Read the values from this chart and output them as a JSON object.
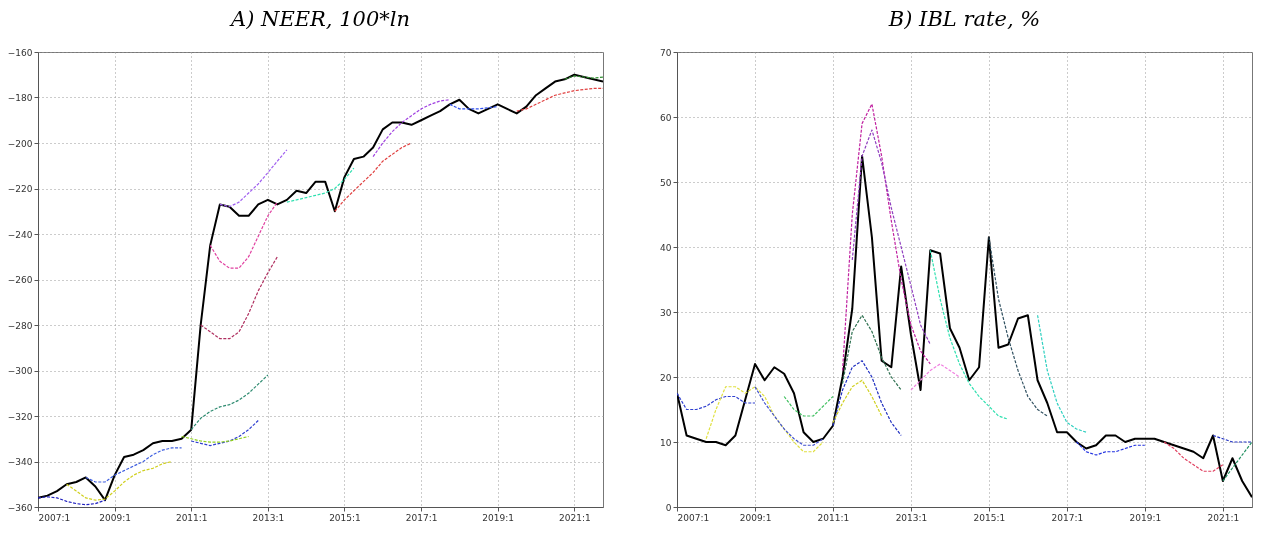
{
  "chart_data": [
    {
      "type": "line",
      "title": "A) NEER, 100*ln",
      "xlim": [
        "2007-01",
        "2021-10"
      ],
      "ylim": [
        -360,
        -160
      ],
      "grid": true,
      "line_style": "dashed",
      "xticks": [
        {
          "value": "2007-01",
          "label": "2007:1"
        },
        {
          "value": "2009-01",
          "label": "2009:1"
        },
        {
          "value": "2011-01",
          "label": "2011:1"
        },
        {
          "value": "2013-01",
          "label": "2013:1"
        },
        {
          "value": "2015-01",
          "label": "2015:1"
        },
        {
          "value": "2017-01",
          "label": "2017:1"
        },
        {
          "value": "2019-01",
          "label": "2019:1"
        },
        {
          "value": "2021-01",
          "label": "2021:1"
        }
      ],
      "yticks": [
        -360,
        -340,
        -320,
        -300,
        -280,
        -260,
        -240,
        -220,
        -200,
        -180,
        -160
      ],
      "series": [
        {
          "color": "#e040a0",
          "x": [
            "2011-07",
            "2011-10",
            "2012-01",
            "2012-04",
            "2012-07",
            "2012-10",
            "2013-01",
            "2013-04"
          ],
          "values": [
            -245,
            -252,
            -255,
            -255,
            -250,
            -241,
            -232,
            -226
          ]
        },
        {
          "color": "#b03060",
          "x": [
            "2011-04",
            "2011-07",
            "2011-10",
            "2012-01",
            "2012-04",
            "2012-07",
            "2012-10",
            "2013-01",
            "2013-04"
          ],
          "values": [
            -280,
            -283,
            -286,
            -286,
            -283,
            -275,
            -265,
            -257,
            -250
          ]
        },
        {
          "color": "#2e8b70",
          "x": [
            "2011-01",
            "2011-04",
            "2011-07",
            "2011-10",
            "2012-01",
            "2012-04",
            "2012-07",
            "2012-10",
            "2013-01"
          ],
          "values": [
            -326,
            -321,
            -318,
            -316,
            -315,
            -313,
            -310,
            -306,
            -302
          ]
        },
        {
          "color": "#3040d0",
          "x": [
            "2011-01",
            "2011-04",
            "2011-07",
            "2011-10",
            "2012-01",
            "2012-04",
            "2012-07",
            "2012-10"
          ],
          "values": [
            -331,
            -332,
            -333,
            -332,
            -331,
            -329,
            -326,
            -322
          ]
        },
        {
          "color": "#a060f0",
          "x": [
            "2011-10",
            "2012-01",
            "2012-04",
            "2012-07",
            "2012-10",
            "2013-01",
            "2013-04",
            "2013-07"
          ],
          "values": [
            -227,
            -228,
            -226,
            -222,
            -218,
            -213,
            -208,
            -203
          ]
        },
        {
          "color": "#2020c0",
          "x": [
            "2007-01",
            "2007-04",
            "2007-07",
            "2007-10",
            "2008-01",
            "2008-04",
            "2008-07",
            "2008-10"
          ],
          "values": [
            -356,
            -355.5,
            -356,
            -357.5,
            -358.5,
            -359,
            -358.5,
            -357
          ]
        },
        {
          "color": "#d0d020",
          "x": [
            "2007-10",
            "2008-01",
            "2008-04",
            "2008-07",
            "2008-10",
            "2009-01",
            "2009-04",
            "2009-07",
            "2009-10",
            "2010-01",
            "2010-04",
            "2010-07"
          ],
          "values": [
            -350,
            -353,
            -356,
            -357,
            -356.5,
            -353,
            -349,
            -346,
            -344,
            -343,
            -341,
            -340
          ]
        },
        {
          "color": "#4060e0",
          "x": [
            "2008-04",
            "2008-07",
            "2008-10",
            "2009-01",
            "2009-04",
            "2009-07",
            "2009-10",
            "2010-01",
            "2010-04",
            "2010-07",
            "2010-10"
          ],
          "values": [
            -347,
            -349,
            -349,
            -346,
            -344,
            -342,
            -340,
            -337,
            -335,
            -334,
            -334
          ]
        },
        {
          "color": "#90d020",
          "x": [
            "2010-10",
            "2011-01",
            "2011-04",
            "2011-07",
            "2011-10",
            "2012-01",
            "2012-04",
            "2012-07"
          ],
          "values": [
            -329,
            -330,
            -331,
            -331.5,
            -331.5,
            -331,
            -330,
            -329
          ]
        },
        {
          "color": "#e04040",
          "x": [
            "2014-10",
            "2015-01",
            "2015-04",
            "2015-07",
            "2015-10",
            "2016-01",
            "2016-04",
            "2016-07",
            "2016-10"
          ],
          "values": [
            -230,
            -225,
            -221,
            -217,
            -213,
            -208,
            -205,
            -202,
            -200
          ]
        },
        {
          "color": "#30e0b0",
          "x": [
            "2013-07",
            "2013-10",
            "2014-01",
            "2014-04",
            "2014-07",
            "2014-10",
            "2015-01",
            "2015-04"
          ],
          "values": [
            -226,
            -225,
            -224,
            -223,
            -222,
            -220,
            -216,
            -211
          ]
        },
        {
          "color": "#a040e0",
          "x": [
            "2015-10",
            "2016-01",
            "2016-04",
            "2016-07",
            "2016-10",
            "2017-01",
            "2017-04",
            "2017-07",
            "2017-10"
          ],
          "values": [
            -206,
            -200,
            -195,
            -191,
            -188,
            -185,
            -183,
            -181.5,
            -181
          ]
        },
        {
          "color": "#3050f0",
          "x": [
            "2017-10",
            "2018-01",
            "2018-04",
            "2018-07",
            "2018-10",
            "2019-01"
          ],
          "values": [
            -183,
            -185,
            -185,
            -185,
            -184.5,
            -184
          ]
        },
        {
          "color": "#e04040",
          "x": [
            "2019-07",
            "2019-10",
            "2020-01",
            "2020-04",
            "2020-07",
            "2020-10",
            "2021-01",
            "2021-04",
            "2021-07",
            "2021-10"
          ],
          "values": [
            -186,
            -185,
            -183,
            -181,
            -179,
            -178,
            -177,
            -176.5,
            -176,
            -176
          ]
        },
        {
          "color": "#309030",
          "x": [
            "2020-10",
            "2021-01",
            "2021-04",
            "2021-07",
            "2021-10"
          ],
          "values": [
            -172,
            -170.5,
            -171,
            -171.5,
            -171
          ]
        },
        {
          "color": "#000000",
          "line_style": "solid",
          "x": [
            "2007-01",
            "2007-04",
            "2007-07",
            "2007-10",
            "2008-01",
            "2008-04",
            "2008-07",
            "2008-10",
            "2009-01",
            "2009-04",
            "2009-07",
            "2009-10",
            "2010-01",
            "2010-04",
            "2010-07",
            "2010-10",
            "2011-01",
            "2011-04",
            "2011-07",
            "2011-10",
            "2012-01",
            "2012-04",
            "2012-07",
            "2012-10",
            "2013-01",
            "2013-04",
            "2013-07",
            "2013-10",
            "2014-01",
            "2014-04",
            "2014-07",
            "2014-10",
            "2015-01",
            "2015-04",
            "2015-07",
            "2015-10",
            "2016-01",
            "2016-04",
            "2016-07",
            "2016-10",
            "2017-01",
            "2017-04",
            "2017-07",
            "2017-10",
            "2018-01",
            "2018-04",
            "2018-07",
            "2018-10",
            "2019-01",
            "2019-04",
            "2019-07",
            "2019-10",
            "2020-01",
            "2020-04",
            "2020-07",
            "2020-10",
            "2021-01",
            "2021-04",
            "2021-07",
            "2021-10"
          ],
          "values": [
            -356,
            -355,
            -353,
            -350,
            -349,
            -347,
            -351,
            -357,
            -346,
            -338,
            -337,
            -335,
            -332,
            -331,
            -331,
            -330,
            -326,
            -280,
            -245,
            -227,
            -228,
            -232,
            -232,
            -227,
            -225,
            -227,
            -225,
            -221,
            -222,
            -217,
            -217,
            -230,
            -215,
            -207,
            -206,
            -202,
            -194,
            -191,
            -191,
            -192,
            -190,
            -188,
            -186,
            -183,
            -181,
            -185,
            -187,
            -185,
            -183,
            -185,
            -187,
            -184,
            -179,
            -176,
            -173,
            -172,
            -170,
            -171,
            -172,
            -173
          ]
        }
      ]
    },
    {
      "type": "line",
      "title": "B) IBL rate, %",
      "xlim": [
        "2007-01",
        "2021-10"
      ],
      "ylim": [
        0,
        70
      ],
      "grid": true,
      "line_style": "dashed",
      "xticks": [
        {
          "value": "2007-01",
          "label": "2007:1"
        },
        {
          "value": "2009-01",
          "label": "2009:1"
        },
        {
          "value": "2011-01",
          "label": "2011:1"
        },
        {
          "value": "2013-01",
          "label": "2013:1"
        },
        {
          "value": "2015-01",
          "label": "2015:1"
        },
        {
          "value": "2017-01",
          "label": "2017:1"
        },
        {
          "value": "2019-01",
          "label": "2019:1"
        },
        {
          "value": "2021-01",
          "label": "2021:1"
        }
      ],
      "yticks": [
        0,
        10,
        20,
        30,
        40,
        50,
        60,
        70
      ],
      "series": [
        {
          "color": "#c020a0",
          "x": [
            "2011-04",
            "2011-07",
            "2011-10",
            "2012-01",
            "2012-04",
            "2012-07",
            "2012-10",
            "2013-01",
            "2013-04",
            "2013-07"
          ],
          "values": [
            21,
            45,
            59,
            62,
            54,
            44,
            35,
            28,
            24,
            22
          ]
        },
        {
          "color": "#9040c0",
          "x": [
            "2011-07",
            "2011-10",
            "2012-01",
            "2012-04",
            "2012-07",
            "2012-10",
            "2013-01",
            "2013-04",
            "2013-07"
          ],
          "values": [
            38,
            54,
            58,
            53,
            46,
            40,
            34,
            28,
            25
          ]
        },
        {
          "color": "#2e7050",
          "x": [
            "2011-04",
            "2011-07",
            "2011-10",
            "2012-01",
            "2012-04",
            "2012-07",
            "2012-10"
          ],
          "values": [
            19,
            27,
            29.5,
            27,
            23,
            20,
            18
          ]
        },
        {
          "color": "#2030c0",
          "x": [
            "2011-01",
            "2011-04",
            "2011-07",
            "2011-10",
            "2012-01",
            "2012-04",
            "2012-07",
            "2012-10"
          ],
          "values": [
            12.5,
            18,
            21.5,
            22.5,
            20,
            16,
            13,
            11
          ]
        },
        {
          "color": "#d0d020",
          "x": [
            "2011-01",
            "2011-04",
            "2011-07",
            "2011-10",
            "2012-01",
            "2012-04"
          ],
          "values": [
            13,
            16,
            18.5,
            19.5,
            17,
            14
          ]
        },
        {
          "color": "#3040d0",
          "x": [
            "2007-01",
            "2007-04",
            "2007-07",
            "2007-10",
            "2008-01",
            "2008-04",
            "2008-07",
            "2008-10",
            "2009-01"
          ],
          "values": [
            17.5,
            15,
            15,
            15.5,
            16.5,
            17,
            17,
            16,
            16
          ]
        },
        {
          "color": "#e0e040",
          "x": [
            "2007-10",
            "2008-01",
            "2008-04",
            "2008-07",
            "2008-10",
            "2009-01",
            "2009-04",
            "2009-07",
            "2009-10",
            "2010-01",
            "2010-04",
            "2010-07",
            "2010-10"
          ],
          "values": [
            10.5,
            15,
            18.5,
            18.5,
            17.5,
            18.5,
            17,
            14,
            12,
            10,
            8.5,
            8.5,
            10
          ]
        },
        {
          "color": "#4050d0",
          "x": [
            "2009-01",
            "2009-04",
            "2009-07",
            "2009-10",
            "2010-01",
            "2010-04",
            "2010-07",
            "2010-10"
          ],
          "values": [
            18.5,
            16,
            14,
            12,
            10.5,
            9.5,
            9.5,
            10.5
          ]
        },
        {
          "color": "#40c060",
          "x": [
            "2009-10",
            "2010-01",
            "2010-04",
            "2010-07",
            "2010-10",
            "2011-01"
          ],
          "values": [
            17,
            15,
            14,
            14,
            15.5,
            17
          ]
        },
        {
          "color": "#f080e0",
          "x": [
            "2013-01",
            "2013-04",
            "2013-07",
            "2013-10",
            "2014-01",
            "2014-04"
          ],
          "values": [
            18,
            19.5,
            21,
            22,
            21,
            20
          ]
        },
        {
          "color": "#30e0b0",
          "x": [
            "2013-07",
            "2013-10",
            "2014-01",
            "2014-04",
            "2014-07",
            "2014-10",
            "2015-01",
            "2015-04",
            "2015-07"
          ],
          "values": [
            39.5,
            32,
            26,
            22,
            19,
            17,
            15.5,
            14,
            13.5
          ]
        },
        {
          "color": "#305060",
          "x": [
            "2015-01",
            "2015-04",
            "2015-07",
            "2015-10",
            "2016-01",
            "2016-04",
            "2016-07"
          ],
          "values": [
            41.5,
            32,
            26,
            21,
            17,
            15,
            14
          ]
        },
        {
          "color": "#30d0c0",
          "x": [
            "2016-04",
            "2016-07",
            "2016-10",
            "2017-01",
            "2017-04",
            "2017-07"
          ],
          "values": [
            29.5,
            21,
            16,
            13,
            12,
            11.5
          ]
        },
        {
          "color": "#2030e0",
          "x": [
            "2017-04",
            "2017-07",
            "2017-10",
            "2018-01",
            "2018-04",
            "2018-07",
            "2018-10",
            "2019-01"
          ],
          "values": [
            10,
            8.5,
            8,
            8.5,
            8.5,
            9,
            9.5,
            9.5
          ]
        },
        {
          "color": "#e04060",
          "x": [
            "2019-07",
            "2019-10",
            "2020-01",
            "2020-04",
            "2020-07",
            "2020-10",
            "2021-01"
          ],
          "values": [
            10,
            9,
            7.5,
            6.5,
            5.5,
            5.5,
            6.5
          ]
        },
        {
          "color": "#2030c0",
          "x": [
            "2020-10",
            "2021-01",
            "2021-04",
            "2021-07",
            "2021-10"
          ],
          "values": [
            11,
            10.5,
            10,
            10,
            10
          ]
        },
        {
          "color": "#209060",
          "x": [
            "2021-01",
            "2021-04",
            "2021-07",
            "2021-10"
          ],
          "values": [
            4,
            6,
            8,
            10
          ]
        },
        {
          "color": "#000000",
          "line_style": "solid",
          "x": [
            "2007-01",
            "2007-04",
            "2007-07",
            "2007-10",
            "2008-01",
            "2008-04",
            "2008-07",
            "2008-10",
            "2009-01",
            "2009-04",
            "2009-07",
            "2009-10",
            "2010-01",
            "2010-04",
            "2010-07",
            "2010-10",
            "2011-01",
            "2011-04",
            "2011-07",
            "2011-10",
            "2012-01",
            "2012-04",
            "2012-07",
            "2012-10",
            "2013-01",
            "2013-04",
            "2013-07",
            "2013-10",
            "2014-01",
            "2014-04",
            "2014-07",
            "2014-10",
            "2015-01",
            "2015-04",
            "2015-07",
            "2015-10",
            "2016-01",
            "2016-04",
            "2016-07",
            "2016-10",
            "2017-01",
            "2017-04",
            "2017-07",
            "2017-10",
            "2018-01",
            "2018-04",
            "2018-07",
            "2018-10",
            "2019-01",
            "2019-04",
            "2019-07",
            "2019-10",
            "2020-01",
            "2020-04",
            "2020-07",
            "2020-10",
            "2021-01",
            "2021-04",
            "2021-07",
            "2021-10"
          ],
          "values": [
            17.5,
            11,
            10.5,
            10,
            10,
            9.5,
            11,
            16.5,
            22,
            19.5,
            21.5,
            20.5,
            17.5,
            11.5,
            10,
            10.5,
            12.5,
            20,
            30.5,
            54,
            41.5,
            22.5,
            21.5,
            37,
            26.5,
            18,
            39.5,
            39,
            27.5,
            24.5,
            19.5,
            21.5,
            41.5,
            24.5,
            25,
            29,
            29.5,
            19.5,
            16,
            11.5,
            11.5,
            10,
            9,
            9.5,
            11,
            11,
            10,
            10.5,
            10.5,
            10.5,
            10,
            9.5,
            9,
            8.5,
            7.5,
            11,
            4,
            7.5,
            4,
            1.5
          ]
        }
      ]
    }
  ]
}
